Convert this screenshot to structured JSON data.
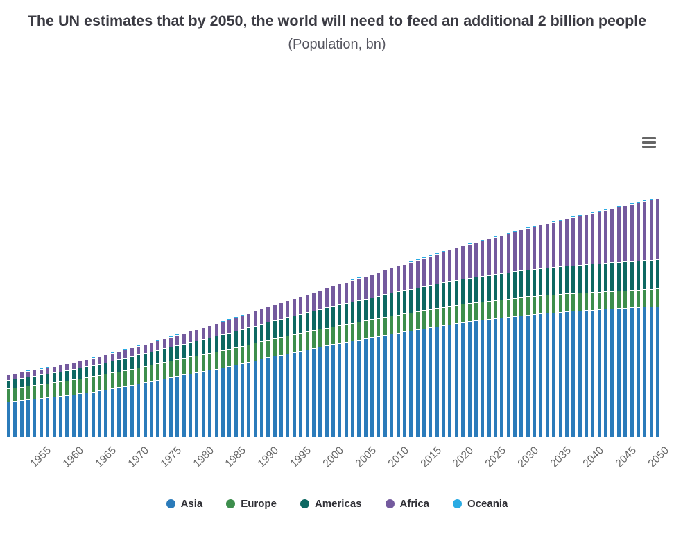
{
  "toolbar": {
    "menu_icon": "hamburger-menu-icon"
  },
  "chart_data": {
    "type": "bar",
    "stacked": true,
    "title": "The UN estimates that by 2050, the world will need to feed an additional 2 billion people",
    "subtitle": "(Population, bn)",
    "unit": "bn",
    "xlabel": "",
    "ylabel": "",
    "grid": false,
    "legend_position": "bottom",
    "bars": {
      "start_year": 1950,
      "end_year": 2050,
      "step": 1
    },
    "anchor_years": [
      1950,
      1955,
      1960,
      1965,
      1970,
      1975,
      1980,
      1985,
      1990,
      1995,
      2000,
      2005,
      2010,
      2015,
      2020,
      2025,
      2030,
      2035,
      2040,
      2045,
      2050
    ],
    "xticks": [
      "1955",
      "1960",
      "1965",
      "1970",
      "1975",
      "1980",
      "1985",
      "1990",
      "1995",
      "2000",
      "2005",
      "2010",
      "2015",
      "2020",
      "2025",
      "2030",
      "2035",
      "2040",
      "2045",
      "2050"
    ],
    "series": [
      {
        "name": "Asia",
        "color": "#2b7bba",
        "values": [
          1.4,
          1.54,
          1.7,
          1.9,
          2.14,
          2.4,
          2.65,
          2.9,
          3.21,
          3.47,
          3.74,
          3.98,
          4.21,
          4.43,
          4.64,
          4.8,
          4.95,
          5.06,
          5.15,
          5.23,
          5.29
        ]
      },
      {
        "name": "Europe",
        "color": "#3d8e4d",
        "values": [
          0.55,
          0.58,
          0.61,
          0.63,
          0.66,
          0.68,
          0.69,
          0.71,
          0.72,
          0.73,
          0.73,
          0.73,
          0.74,
          0.74,
          0.75,
          0.74,
          0.74,
          0.73,
          0.72,
          0.71,
          0.71
        ]
      },
      {
        "name": "Americas",
        "color": "#0e6862",
        "values": [
          0.34,
          0.38,
          0.42,
          0.47,
          0.52,
          0.56,
          0.61,
          0.67,
          0.72,
          0.78,
          0.84,
          0.89,
          0.94,
          0.99,
          1.02,
          1.06,
          1.09,
          1.12,
          1.15,
          1.17,
          1.19
        ]
      },
      {
        "name": "Africa",
        "color": "#745a9e",
        "values": [
          0.23,
          0.25,
          0.28,
          0.32,
          0.36,
          0.41,
          0.48,
          0.55,
          0.63,
          0.72,
          0.81,
          0.92,
          1.04,
          1.19,
          1.34,
          1.51,
          1.69,
          1.88,
          2.08,
          2.28,
          2.49
        ]
      },
      {
        "name": "Oceania",
        "color": "#2aabe3",
        "values": [
          0.013,
          0.014,
          0.016,
          0.018,
          0.02,
          0.022,
          0.023,
          0.025,
          0.027,
          0.029,
          0.031,
          0.034,
          0.037,
          0.04,
          0.043,
          0.045,
          0.048,
          0.051,
          0.054,
          0.056,
          0.057
        ]
      }
    ]
  }
}
